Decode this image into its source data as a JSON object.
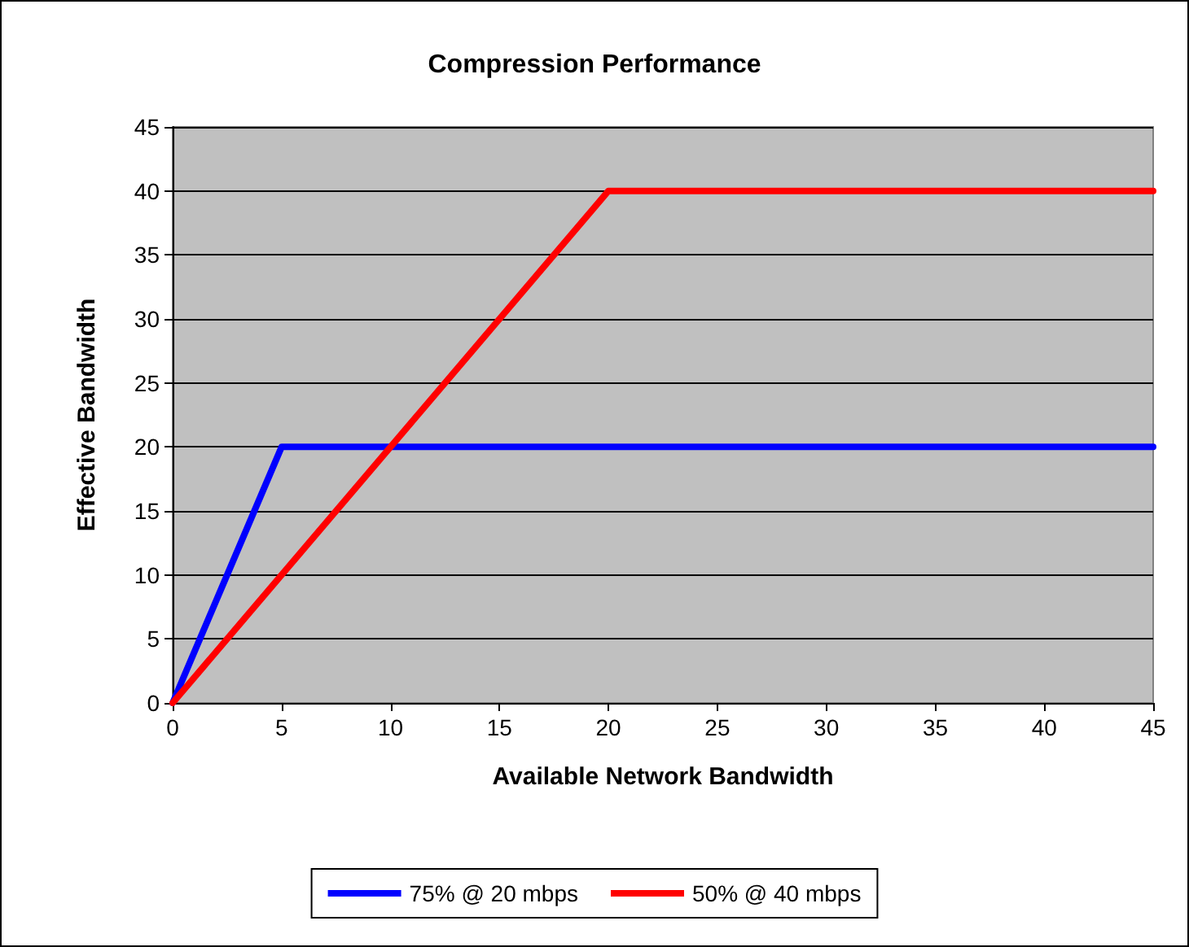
{
  "chart_data": {
    "type": "line",
    "title": "Compression Performance",
    "xlabel": "Available Network Bandwidth",
    "ylabel": "Effective Bandwidth",
    "series": [
      {
        "name": "75% @ 20 mbps",
        "color": "#0000ff",
        "x": [
          0,
          5,
          45
        ],
        "values": [
          0,
          20,
          20
        ]
      },
      {
        "name": "50% @ 40 mbps",
        "color": "#ff0000",
        "x": [
          0,
          20,
          45
        ],
        "values": [
          0,
          40,
          40
        ]
      }
    ],
    "xlim": [
      0,
      45
    ],
    "xticks": [
      0,
      5,
      10,
      15,
      20,
      25,
      30,
      35,
      40,
      45
    ],
    "ylim": [
      0,
      45
    ],
    "yticks": [
      0,
      5,
      10,
      15,
      20,
      25,
      30,
      35,
      40,
      45
    ],
    "grid": "y",
    "legend": "bottom",
    "marker": "none",
    "line_style": "solid"
  }
}
